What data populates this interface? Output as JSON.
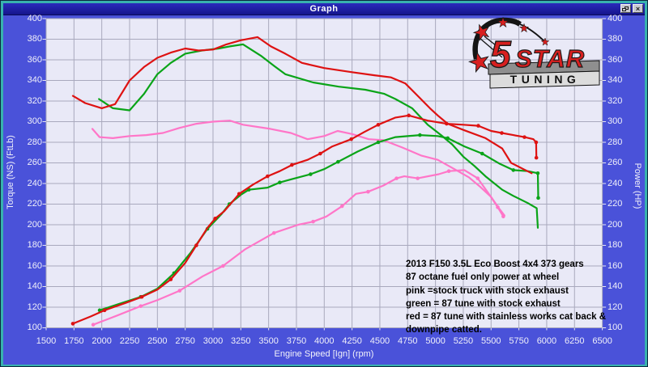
{
  "window_title": "Graph",
  "titlebar": {
    "close_label": "×"
  },
  "axes": {
    "left_title": "Torque (NS) (FtLb)",
    "right_title": "Power (HP)",
    "x_title": "Engine Speed [Ign] (rpm)",
    "y_ticks": [
      400,
      380,
      360,
      340,
      320,
      300,
      280,
      260,
      240,
      220,
      200,
      180,
      160,
      140,
      120,
      100
    ],
    "x_ticks": [
      1500,
      1750,
      2000,
      2250,
      2500,
      2750,
      3000,
      3250,
      3500,
      3750,
      4000,
      4250,
      4500,
      4750,
      5000,
      5250,
      5500,
      5750,
      6000,
      6250,
      6500
    ]
  },
  "annotation": {
    "lines": [
      "2013 F150 3.5L Eco Boost 4x4 373 gears",
      "87 octane fuel only power at wheel",
      "pink =stock truck with stock exhaust",
      "green = 87 tune with stock exhaust",
      "red = 87 tune with stainless works cat back &",
      "downpipe catted."
    ]
  },
  "logo": {
    "five": "5",
    "star": "STAR",
    "tuning": "TUNING"
  },
  "colors": {
    "red": "#de1212",
    "green": "#0aa418",
    "pink": "#ff76c8",
    "panel_blue": "#4a52d9",
    "titlebar_navy": "#15158c",
    "plot_bg": "#e9e9f7",
    "grid": "#a9a9bd",
    "tick": "#e8e8f2",
    "teal_border": "#38b2ae",
    "logo_red": "#d81f1f",
    "logo_gray": "#8f8f8f",
    "logo_silver": "#dcdcdc"
  },
  "chart_data": {
    "type": "line",
    "title": "Dyno chart: torque and wheel power vs engine speed",
    "xlabel": "Engine Speed [Ign] (rpm)",
    "ylabel_left": "Torque (NS) (FtLb)",
    "ylabel_right": "Power (HP)",
    "xlim": [
      1500,
      6500
    ],
    "ylim": [
      100,
      400
    ],
    "x_tick_step": 250,
    "y_tick_step": 20,
    "grid": true,
    "series": [
      {
        "name": "pink-stock-truck-torque",
        "legend": "stock truck with stock exhaust (torque)",
        "color": "#ff76c8",
        "markers": false,
        "points": [
          [
            1915,
            293
          ],
          [
            1980,
            285
          ],
          [
            2100,
            284
          ],
          [
            2250,
            286
          ],
          [
            2400,
            287
          ],
          [
            2550,
            289
          ],
          [
            2700,
            294
          ],
          [
            2850,
            298
          ],
          [
            3000,
            300
          ],
          [
            3150,
            301
          ],
          [
            3270,
            297
          ],
          [
            3515,
            293
          ],
          [
            3700,
            289
          ],
          [
            3850,
            283
          ],
          [
            4000,
            286
          ],
          [
            4120,
            291
          ],
          [
            4250,
            288
          ],
          [
            4400,
            283
          ],
          [
            4530,
            282
          ],
          [
            4700,
            275
          ],
          [
            4875,
            267
          ],
          [
            5020,
            263
          ],
          [
            5170,
            254
          ],
          [
            5300,
            246
          ],
          [
            5400,
            237
          ],
          [
            5500,
            227
          ],
          [
            5570,
            216
          ],
          [
            5620,
            209
          ]
        ]
      },
      {
        "name": "pink-stock-truck-power",
        "legend": "stock truck with stock exhaust (power)",
        "color": "#ff76c8",
        "markers": true,
        "points": [
          [
            1923,
            103
          ],
          [
            2141,
            112
          ],
          [
            2350,
            121
          ],
          [
            2503,
            127
          ],
          [
            2700,
            136
          ],
          [
            2907,
            150
          ],
          [
            3090,
            160
          ],
          [
            3286,
            176
          ],
          [
            3548,
            192
          ],
          [
            3767,
            200
          ],
          [
            3900,
            203
          ],
          [
            4020,
            208
          ],
          [
            4160,
            218
          ],
          [
            4285,
            230
          ],
          [
            4394,
            232
          ],
          [
            4530,
            238
          ],
          [
            4650,
            245
          ],
          [
            4720,
            247
          ],
          [
            4840,
            245
          ],
          [
            5030,
            249
          ],
          [
            5120,
            252
          ],
          [
            5260,
            253
          ],
          [
            5380,
            245
          ],
          [
            5480,
            230
          ],
          [
            5560,
            217
          ],
          [
            5610,
            208
          ]
        ]
      },
      {
        "name": "green-87-tune-torque",
        "legend": "87 tune with stock exhaust (torque)",
        "color": "#0aa418",
        "markers": false,
        "points": [
          [
            1975,
            322
          ],
          [
            2100,
            313
          ],
          [
            2250,
            311
          ],
          [
            2380,
            327
          ],
          [
            2500,
            346
          ],
          [
            2620,
            357
          ],
          [
            2750,
            366
          ],
          [
            2900,
            369
          ],
          [
            3050,
            371
          ],
          [
            3150,
            373
          ],
          [
            3270,
            375
          ],
          [
            3430,
            364
          ],
          [
            3550,
            354
          ],
          [
            3650,
            346
          ],
          [
            3900,
            338
          ],
          [
            4130,
            334
          ],
          [
            4370,
            331
          ],
          [
            4540,
            327
          ],
          [
            4640,
            322
          ],
          [
            4790,
            313
          ],
          [
            4930,
            297
          ],
          [
            5050,
            287
          ],
          [
            5150,
            278
          ],
          [
            5250,
            266
          ],
          [
            5350,
            257
          ],
          [
            5450,
            247
          ],
          [
            5600,
            234
          ],
          [
            5700,
            228
          ],
          [
            5830,
            221
          ],
          [
            5910,
            216
          ],
          [
            5920,
            197
          ]
        ]
      },
      {
        "name": "green-87-tune-power",
        "legend": "87 tune with stock exhaust (power)",
        "color": "#0aa418",
        "markers": true,
        "points": [
          [
            1981,
            117
          ],
          [
            2150,
            123
          ],
          [
            2350,
            130
          ],
          [
            2500,
            138
          ],
          [
            2650,
            153
          ],
          [
            2800,
            173
          ],
          [
            2950,
            196
          ],
          [
            3074,
            210
          ],
          [
            3147,
            220
          ],
          [
            3250,
            229
          ],
          [
            3322,
            234
          ],
          [
            3490,
            236
          ],
          [
            3600,
            241
          ],
          [
            3700,
            244
          ],
          [
            3877,
            249
          ],
          [
            4000,
            254
          ],
          [
            4124,
            261
          ],
          [
            4300,
            271
          ],
          [
            4485,
            280
          ],
          [
            4641,
            285
          ],
          [
            4860,
            287
          ],
          [
            5020,
            286
          ],
          [
            5110,
            284
          ],
          [
            5260,
            276
          ],
          [
            5420,
            269
          ],
          [
            5580,
            259
          ],
          [
            5700,
            253
          ],
          [
            5830,
            252
          ],
          [
            5920,
            250
          ],
          [
            5924,
            226
          ]
        ]
      },
      {
        "name": "red-87-tune-catback-torque",
        "legend": "87 tune with stainless works cat back & downpipe catted (torque)",
        "color": "#de1212",
        "markers": false,
        "points": [
          [
            1740,
            325
          ],
          [
            1850,
            318
          ],
          [
            2000,
            313
          ],
          [
            2120,
            317
          ],
          [
            2250,
            340
          ],
          [
            2380,
            353
          ],
          [
            2500,
            362
          ],
          [
            2620,
            367
          ],
          [
            2750,
            371
          ],
          [
            2870,
            369
          ],
          [
            3000,
            370
          ],
          [
            3120,
            375
          ],
          [
            3250,
            379
          ],
          [
            3400,
            382
          ],
          [
            3520,
            373
          ],
          [
            3650,
            366
          ],
          [
            3800,
            357
          ],
          [
            4000,
            352
          ],
          [
            4250,
            348
          ],
          [
            4450,
            345
          ],
          [
            4600,
            343
          ],
          [
            4730,
            337
          ],
          [
            4850,
            324
          ],
          [
            4950,
            313
          ],
          [
            5020,
            306
          ],
          [
            5110,
            298
          ],
          [
            5250,
            292
          ],
          [
            5450,
            284
          ],
          [
            5600,
            274
          ],
          [
            5680,
            260
          ],
          [
            5790,
            254
          ],
          [
            5865,
            250
          ]
        ]
      },
      {
        "name": "red-87-tune-catback-power",
        "legend": "87 tune with stainless works cat back & downpipe catted (power)",
        "color": "#de1212",
        "markers": true,
        "points": [
          [
            1740,
            104
          ],
          [
            1900,
            111
          ],
          [
            2025,
            117
          ],
          [
            2210,
            124
          ],
          [
            2360,
            130
          ],
          [
            2500,
            137
          ],
          [
            2620,
            147
          ],
          [
            2750,
            163
          ],
          [
            2850,
            180
          ],
          [
            2950,
            197
          ],
          [
            3020,
            206
          ],
          [
            3100,
            213
          ],
          [
            3235,
            230
          ],
          [
            3360,
            239
          ],
          [
            3490,
            247
          ],
          [
            3600,
            252
          ],
          [
            3709,
            258
          ],
          [
            3850,
            263
          ],
          [
            3964,
            269
          ],
          [
            4073,
            276
          ],
          [
            4243,
            283
          ],
          [
            4360,
            290
          ],
          [
            4485,
            297
          ],
          [
            4641,
            304
          ],
          [
            4760,
            306
          ],
          [
            4930,
            301
          ],
          [
            5100,
            298
          ],
          [
            5250,
            297
          ],
          [
            5385,
            296
          ],
          [
            5500,
            291
          ],
          [
            5596,
            289
          ],
          [
            5700,
            287
          ],
          [
            5800,
            285
          ],
          [
            5880,
            283
          ],
          [
            5905,
            280
          ],
          [
            5907,
            265
          ]
        ]
      }
    ]
  }
}
